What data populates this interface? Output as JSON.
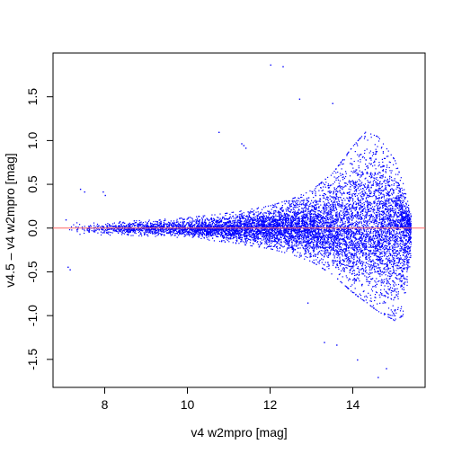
{
  "chart_data": {
    "type": "scatter",
    "xlabel": "v4 w2mpro [mag]",
    "ylabel": "v4.5 – v4 w2mpro [mag]",
    "xlim": [
      6.75,
      15.75
    ],
    "ylim": [
      -1.82,
      2.0
    ],
    "x_ticks": [
      8,
      10,
      12,
      14
    ],
    "x_tick_labels": [
      "8",
      "10",
      "12",
      "14"
    ],
    "y_ticks": [
      -1.5,
      -1.0,
      -0.5,
      0.0,
      0.5,
      1.0,
      1.5
    ],
    "y_tick_labels": [
      "-1.5",
      "-1.0",
      "-0.5",
      "0.0",
      "0.5",
      "1.0",
      "1.5"
    ],
    "reference_line": {
      "y": 0.0,
      "color": "#ff6666"
    },
    "point_color": "#0000ff",
    "grid": false,
    "envelope": {
      "x": [
        7.0,
        8.0,
        9.0,
        10.0,
        11.0,
        12.0,
        12.5,
        13.0,
        13.5,
        14.0,
        14.3,
        14.6,
        15.0,
        15.2,
        15.4
      ],
      "upper": [
        0.06,
        0.07,
        0.09,
        0.12,
        0.17,
        0.25,
        0.32,
        0.42,
        0.6,
        0.9,
        1.05,
        1.0,
        0.75,
        0.5,
        0.15
      ],
      "lower": [
        -0.06,
        -0.07,
        -0.08,
        -0.1,
        -0.15,
        -0.22,
        -0.28,
        -0.36,
        -0.5,
        -0.7,
        -0.8,
        -0.9,
        -1.0,
        -0.95,
        -0.3
      ]
    },
    "points": [
      {
        "x": 12.0,
        "y": 1.87
      },
      {
        "x": 12.3,
        "y": 1.85
      },
      {
        "x": 12.7,
        "y": 1.48
      },
      {
        "x": 13.5,
        "y": 1.43
      },
      {
        "x": 7.4,
        "y": 0.45
      },
      {
        "x": 7.5,
        "y": 0.42
      },
      {
        "x": 7.95,
        "y": 0.42
      },
      {
        "x": 8.0,
        "y": 0.38
      },
      {
        "x": 7.1,
        "y": -0.44
      },
      {
        "x": 7.15,
        "y": -0.47
      },
      {
        "x": 7.05,
        "y": 0.1
      },
      {
        "x": 10.75,
        "y": 1.1
      },
      {
        "x": 11.3,
        "y": 0.97
      },
      {
        "x": 11.35,
        "y": 0.95
      },
      {
        "x": 11.4,
        "y": 0.92
      },
      {
        "x": 12.9,
        "y": -0.85
      },
      {
        "x": 13.3,
        "y": -1.3
      },
      {
        "x": 13.6,
        "y": -1.33
      },
      {
        "x": 14.1,
        "y": -1.5
      },
      {
        "x": 14.8,
        "y": -1.6
      },
      {
        "x": 14.6,
        "y": -1.7
      }
    ]
  }
}
